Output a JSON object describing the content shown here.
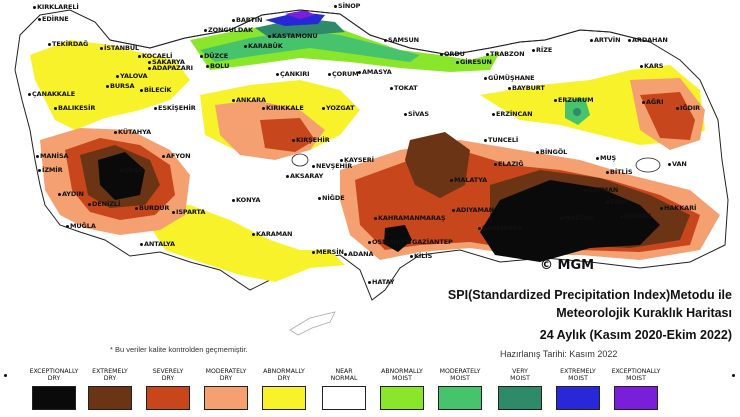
{
  "copyright": "© MGM",
  "title": {
    "line1": "SPI(Standardized Precipitation Index)Metodu ile",
    "line2": "Meteorolojik Kuraklık Haritası",
    "line3": "24 Aylık (Kasım 2020-Ekim 2022)"
  },
  "prepared": "Hazırlanış Tarihi: Kasım 2022",
  "note": "* Bu veriler kalite kontrolden geçmemiştir.",
  "colors": {
    "exceptionally_dry": "#0a0a0a",
    "extremely_dry": "#6b3414",
    "severely_dry": "#c8461c",
    "moderately_dry": "#f4a071",
    "abnormally_dry": "#f7f22a",
    "near_normal": "#ffffff",
    "abnormally_moist": "#8ae62b",
    "moderately_moist": "#47c46b",
    "very_moist": "#2e8a68",
    "extremely_moist": "#2828d8",
    "exceptionally_moist": "#7a1fd9"
  },
  "legend": [
    {
      "label1": "EXCEPTIONALLY",
      "label2": "DRY",
      "color": "#0a0a0a"
    },
    {
      "label1": "EXTREMELY",
      "label2": "DRY",
      "color": "#6b3414"
    },
    {
      "label1": "SEVERELY",
      "label2": "DRY",
      "color": "#c8461c"
    },
    {
      "label1": "MODERATELY",
      "label2": "DRY",
      "color": "#f4a071"
    },
    {
      "label1": "ABNORMALLY",
      "label2": "DRY",
      "color": "#f7f22a"
    },
    {
      "label1": "NEAR",
      "label2": "NORMAL",
      "color": "#ffffff"
    },
    {
      "label1": "ABNORMALLY",
      "label2": "MOIST",
      "color": "#8ae62b"
    },
    {
      "label1": "MODERATELY",
      "label2": "MOIST",
      "color": "#47c46b"
    },
    {
      "label1": "VERY",
      "label2": "MOIST",
      "color": "#2e8a68"
    },
    {
      "label1": "EXTREMELY",
      "label2": "MOIST",
      "color": "#2828d8"
    },
    {
      "label1": "EXCEPTIONALLY",
      "label2": "MOIST",
      "color": "#7a1fd9"
    }
  ],
  "cities": [
    "KIRKLARELİ",
    "EDİRNE",
    "TEKİRDAĞ",
    "İSTANBUL",
    "KOCAELİ",
    "SAKARYA",
    "DÜZCE",
    "BOLU",
    "ADAPAZARI",
    "YALOVA",
    "BURSA",
    "BİLECİK",
    "ÇANAKKALE",
    "BALIKESİR",
    "ESKİŞEHİR",
    "KÜTAHYA",
    "MANİSA",
    "İZMİR",
    "AFYON",
    "USAK",
    "AYDIN",
    "DENİZLİ",
    "MUĞLA",
    "BURDUR",
    "ISPARTA",
    "ANTALYA",
    "KONYA",
    "KARAMAN",
    "MERSİN",
    "ADANA",
    "HATAY",
    "OSMANİYE",
    "GAZİANTEP",
    "KİLİS",
    "KAHRAMANMARAŞ",
    "ADIYAMAN",
    "MALATYA",
    "ŞANLIURFA",
    "MARDİN",
    "BATMAN",
    "SİİRT",
    "ŞIRNAK",
    "HAKKARİ",
    "VAN",
    "BİTLİS",
    "MUŞ",
    "BİNGÖL",
    "TUNCELİ",
    "ELAZIĞ",
    "ERZİNCAN",
    "ERZURUM",
    "AĞRI",
    "IĞDIR",
    "KARS",
    "ARDAHAN",
    "ARTVİN",
    "RİZE",
    "TRABZON",
    "GÜMÜŞHANE",
    "BAYBURT",
    "GİRESUN",
    "ORDU",
    "SAMSUN",
    "SİNOP",
    "KASTAMONU",
    "BARTIN",
    "ZONGULDAK",
    "KARABÜK",
    "ÇANKIRI",
    "ÇORUM",
    "AMASYA",
    "TOKAT",
    "SİVAS",
    "YOZGAT",
    "KIRIKKALE",
    "ANKARA",
    "KIRŞEHİR",
    "NEVŞEHİR",
    "KAYSERİ",
    "AKSARAY",
    "NİĞDE",
    "KARABÜK"
  ]
}
